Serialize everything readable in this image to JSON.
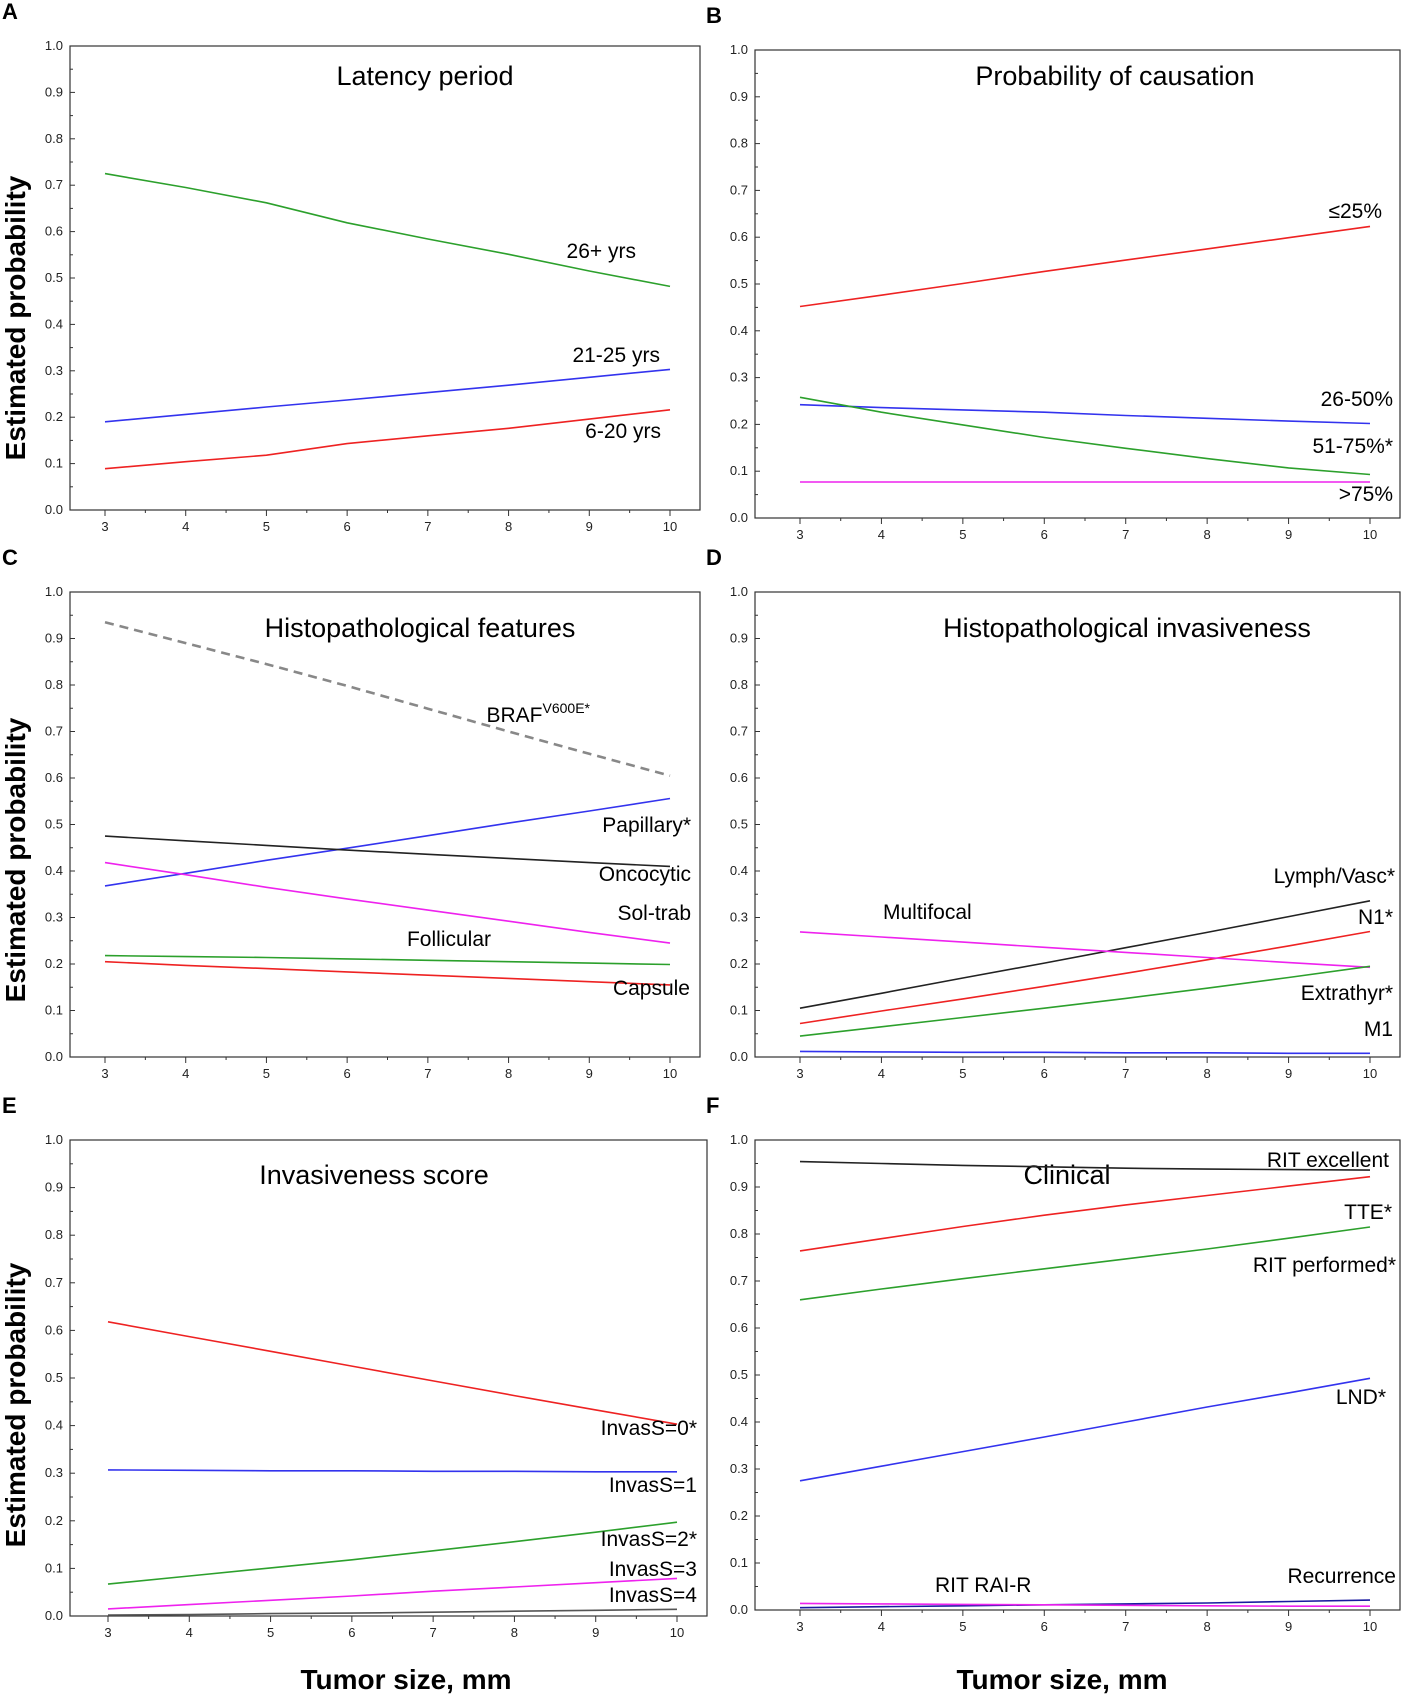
{
  "figure": {
    "ylabel": "Estimated probability",
    "xlabel": "Tumor size, mm"
  },
  "chart_data": [
    {
      "panel": "A",
      "type": "line",
      "title": "Latency period",
      "xlabel": "Tumor size, mm",
      "ylabel": "Estimated probability",
      "xlim": [
        3,
        10
      ],
      "ylim": [
        0,
        1
      ],
      "xticks": [
        "3",
        "4",
        "5",
        "6",
        "7",
        "8",
        "9",
        "10"
      ],
      "yticks": [
        "0.0",
        "0.1",
        "0.2",
        "0.3",
        "0.4",
        "0.5",
        "0.6",
        "0.7",
        "0.8",
        "0.9",
        "1.0"
      ],
      "series": [
        {
          "name": "26+ yrs",
          "color": "#2ca02c",
          "dashed": false,
          "x": [
            3,
            4,
            5,
            6,
            7,
            8,
            9,
            10
          ],
          "values": [
            0.725,
            0.695,
            0.662,
            0.619,
            0.584,
            0.551,
            0.515,
            0.482
          ]
        },
        {
          "name": "21-25 yrs",
          "color": "#3333ee",
          "dashed": false,
          "x": [
            3,
            4,
            5,
            6,
            7,
            8,
            9,
            10
          ],
          "values": [
            0.19,
            0.206,
            0.222,
            0.237,
            0.253,
            0.269,
            0.286,
            0.303
          ]
        },
        {
          "name": "6-20 yrs",
          "color": "#ee2222",
          "dashed": false,
          "x": [
            3,
            4,
            5,
            6,
            7,
            8,
            9,
            10
          ],
          "values": [
            0.089,
            0.104,
            0.118,
            0.143,
            0.16,
            0.176,
            0.196,
            0.216
          ]
        }
      ]
    },
    {
      "panel": "B",
      "type": "line",
      "title": "Probability of causation",
      "xlabel": "Tumor size, mm",
      "ylabel": "Estimated probability",
      "xlim": [
        3,
        10
      ],
      "ylim": [
        0,
        1
      ],
      "xticks": [
        "3",
        "4",
        "5",
        "6",
        "7",
        "8",
        "9",
        "10"
      ],
      "yticks": [
        "0.0",
        "0.1",
        "0.2",
        "0.3",
        "0.4",
        "0.5",
        "0.6",
        "0.7",
        "0.8",
        "0.9",
        "1.0"
      ],
      "series": [
        {
          "name": "≤25%",
          "color": "#ee2222",
          "dashed": false,
          "x": [
            3,
            4,
            5,
            6,
            7,
            8,
            9,
            10
          ],
          "values": [
            0.452,
            0.476,
            0.501,
            0.527,
            0.551,
            0.575,
            0.599,
            0.623
          ]
        },
        {
          "name": "26-50%",
          "color": "#3333ee",
          "dashed": false,
          "x": [
            3,
            4,
            5,
            6,
            7,
            8,
            9,
            10
          ],
          "values": [
            0.242,
            0.236,
            0.231,
            0.226,
            0.219,
            0.213,
            0.207,
            0.202
          ]
        },
        {
          "name": "51-75%*",
          "color": "#2ca02c",
          "dashed": false,
          "x": [
            3,
            4,
            5,
            6,
            7,
            8,
            9,
            10
          ],
          "values": [
            0.258,
            0.226,
            0.199,
            0.172,
            0.149,
            0.127,
            0.107,
            0.093
          ]
        },
        {
          "name": ">75%",
          "color": "#ee22ee",
          "dashed": false,
          "x": [
            3,
            4,
            5,
            6,
            7,
            8,
            9,
            10
          ],
          "values": [
            0.077,
            0.077,
            0.077,
            0.077,
            0.077,
            0.077,
            0.077,
            0.077
          ]
        }
      ]
    },
    {
      "panel": "C",
      "type": "line",
      "title": "Histopathological features",
      "xlabel": "Tumor size, mm",
      "ylabel": "Estimated probability",
      "xlim": [
        3,
        10
      ],
      "ylim": [
        0,
        1
      ],
      "xticks": [
        "3",
        "4",
        "5",
        "6",
        "7",
        "8",
        "9",
        "10"
      ],
      "yticks": [
        "0.0",
        "0.1",
        "0.2",
        "0.3",
        "0.4",
        "0.5",
        "0.6",
        "0.7",
        "0.8",
        "0.9",
        "1.0"
      ],
      "series": [
        {
          "name": "BRAF",
          "name_superscript": "V600E",
          "name_suffix": "*",
          "color": "#888888",
          "dashed": true,
          "x": [
            3,
            4,
            5,
            6,
            7,
            8,
            9,
            10
          ],
          "values": [
            0.935,
            0.89,
            0.845,
            0.798,
            0.749,
            0.7,
            0.652,
            0.605
          ]
        },
        {
          "name": "Papillary*",
          "color": "#3333ee",
          "dashed": false,
          "x": [
            3,
            4,
            5,
            6,
            7,
            8,
            9,
            10
          ],
          "values": [
            0.368,
            0.395,
            0.423,
            0.449,
            0.476,
            0.503,
            0.529,
            0.556
          ]
        },
        {
          "name": "Oncocytic",
          "color": "#222222",
          "dashed": false,
          "x": [
            3,
            4,
            5,
            6,
            7,
            8,
            9,
            10
          ],
          "values": [
            0.475,
            0.465,
            0.455,
            0.445,
            0.436,
            0.427,
            0.418,
            0.41
          ]
        },
        {
          "name": "Sol-trab",
          "color": "#ee22ee",
          "dashed": false,
          "x": [
            3,
            4,
            5,
            6,
            7,
            8,
            9,
            10
          ],
          "values": [
            0.418,
            0.392,
            0.365,
            0.34,
            0.316,
            0.292,
            0.268,
            0.245
          ]
        },
        {
          "name": "Follicular",
          "color": "#2ca02c",
          "dashed": false,
          "x": [
            3,
            4,
            5,
            6,
            7,
            8,
            9,
            10
          ],
          "values": [
            0.218,
            0.216,
            0.214,
            0.211,
            0.208,
            0.205,
            0.202,
            0.199
          ]
        },
        {
          "name": "Capsule",
          "color": "#ee2222",
          "dashed": false,
          "x": [
            3,
            4,
            5,
            6,
            7,
            8,
            9,
            10
          ],
          "values": [
            0.205,
            0.197,
            0.19,
            0.183,
            0.176,
            0.169,
            0.162,
            0.155
          ]
        }
      ]
    },
    {
      "panel": "D",
      "type": "line",
      "title": "Histopathological invasiveness",
      "xlabel": "Tumor size, mm",
      "ylabel": "Estimated probability",
      "xlim": [
        3,
        10
      ],
      "ylim": [
        0,
        1
      ],
      "xticks": [
        "3",
        "4",
        "5",
        "6",
        "7",
        "8",
        "9",
        "10"
      ],
      "yticks": [
        "0.0",
        "0.1",
        "0.2",
        "0.3",
        "0.4",
        "0.5",
        "0.6",
        "0.7",
        "0.8",
        "0.9",
        "1.0"
      ],
      "series": [
        {
          "name": "Lymph/Vasc*",
          "color": "#222222",
          "dashed": false,
          "x": [
            3,
            4,
            5,
            6,
            7,
            8,
            9,
            10
          ],
          "values": [
            0.105,
            0.137,
            0.17,
            0.202,
            0.235,
            0.268,
            0.302,
            0.336
          ]
        },
        {
          "name": "N1*",
          "color": "#ee2222",
          "dashed": false,
          "x": [
            3,
            4,
            5,
            6,
            7,
            8,
            9,
            10
          ],
          "values": [
            0.072,
            0.099,
            0.125,
            0.152,
            0.18,
            0.209,
            0.239,
            0.27
          ]
        },
        {
          "name": "Multifocal",
          "color": "#ee22ee",
          "dashed": false,
          "x": [
            3,
            4,
            5,
            6,
            7,
            8,
            9,
            10
          ],
          "values": [
            0.269,
            0.258,
            0.247,
            0.236,
            0.225,
            0.214,
            0.203,
            0.193
          ]
        },
        {
          "name": "Extrathyr*",
          "color": "#2ca02c",
          "dashed": false,
          "x": [
            3,
            4,
            5,
            6,
            7,
            8,
            9,
            10
          ],
          "values": [
            0.045,
            0.065,
            0.085,
            0.105,
            0.126,
            0.148,
            0.171,
            0.195
          ]
        },
        {
          "name": "M1",
          "color": "#3333ee",
          "dashed": false,
          "x": [
            3,
            4,
            5,
            6,
            7,
            8,
            9,
            10
          ],
          "values": [
            0.012,
            0.011,
            0.01,
            0.01,
            0.009,
            0.009,
            0.008,
            0.008
          ]
        }
      ]
    },
    {
      "panel": "E",
      "type": "line",
      "title": "Invasiveness score",
      "xlabel": "Tumor size, mm",
      "ylabel": "Estimated probability",
      "xlim": [
        3,
        10
      ],
      "ylim": [
        0,
        1
      ],
      "xticks": [
        "3",
        "4",
        "5",
        "6",
        "7",
        "8",
        "9",
        "10"
      ],
      "yticks": [
        "0.0",
        "0.1",
        "0.2",
        "0.3",
        "0.4",
        "0.5",
        "0.6",
        "0.7",
        "0.8",
        "0.9",
        "1.0"
      ],
      "series": [
        {
          "name": "InvasS=0*",
          "color": "#ee2222",
          "dashed": false,
          "x": [
            3,
            4,
            5,
            6,
            7,
            8,
            9,
            10
          ],
          "values": [
            0.618,
            0.587,
            0.556,
            0.525,
            0.494,
            0.463,
            0.433,
            0.403
          ]
        },
        {
          "name": "InvasS=1",
          "color": "#3333ee",
          "dashed": false,
          "x": [
            3,
            4,
            5,
            6,
            7,
            8,
            9,
            10
          ],
          "values": [
            0.307,
            0.306,
            0.305,
            0.305,
            0.304,
            0.304,
            0.303,
            0.303
          ]
        },
        {
          "name": "InvasS=2*",
          "color": "#2ca02c",
          "dashed": false,
          "x": [
            3,
            4,
            5,
            6,
            7,
            8,
            9,
            10
          ],
          "values": [
            0.067,
            0.084,
            0.101,
            0.118,
            0.137,
            0.156,
            0.176,
            0.197
          ]
        },
        {
          "name": "InvasS=3",
          "color": "#ee22ee",
          "dashed": false,
          "x": [
            3,
            4,
            5,
            6,
            7,
            8,
            9,
            10
          ],
          "values": [
            0.015,
            0.024,
            0.033,
            0.042,
            0.052,
            0.061,
            0.07,
            0.079
          ]
        },
        {
          "name": "InvasS=4",
          "color": "#555555",
          "dashed": false,
          "x": [
            3,
            4,
            5,
            6,
            7,
            8,
            9,
            10
          ],
          "values": [
            0.002,
            0.003,
            0.005,
            0.006,
            0.008,
            0.01,
            0.012,
            0.014
          ]
        }
      ]
    },
    {
      "panel": "F",
      "type": "line",
      "title": "Clinical",
      "xlabel": "Tumor size, mm",
      "ylabel": "Estimated probability",
      "xlim": [
        3,
        10
      ],
      "ylim": [
        0,
        1
      ],
      "xticks": [
        "3",
        "4",
        "5",
        "6",
        "7",
        "8",
        "9",
        "10"
      ],
      "yticks": [
        "0.0",
        "0.1",
        "0.2",
        "0.3",
        "0.4",
        "0.5",
        "0.6",
        "0.7",
        "0.8",
        "0.9",
        "1.0"
      ],
      "series": [
        {
          "name": "RIT excellent",
          "color": "#222222",
          "dashed": false,
          "x": [
            3,
            4,
            5,
            6,
            7,
            8,
            9,
            10
          ],
          "values": [
            0.954,
            0.95,
            0.946,
            0.943,
            0.94,
            0.938,
            0.937,
            0.936
          ]
        },
        {
          "name": "TTE*",
          "color": "#ee2222",
          "dashed": false,
          "x": [
            3,
            4,
            5,
            6,
            7,
            8,
            9,
            10
          ],
          "values": [
            0.764,
            0.79,
            0.816,
            0.84,
            0.862,
            0.882,
            0.902,
            0.922
          ]
        },
        {
          "name": "RIT performed*",
          "color": "#2ca02c",
          "dashed": false,
          "x": [
            3,
            4,
            5,
            6,
            7,
            8,
            9,
            10
          ],
          "values": [
            0.66,
            0.683,
            0.705,
            0.726,
            0.747,
            0.768,
            0.791,
            0.815
          ]
        },
        {
          "name": "LND*",
          "color": "#3333ee",
          "dashed": false,
          "x": [
            3,
            4,
            5,
            6,
            7,
            8,
            9,
            10
          ],
          "values": [
            0.275,
            0.306,
            0.337,
            0.368,
            0.4,
            0.432,
            0.462,
            0.493
          ]
        },
        {
          "name": "Recurrence",
          "color": "#1a1aa0",
          "dashed": false,
          "x": [
            3,
            4,
            5,
            6,
            7,
            8,
            9,
            10
          ],
          "values": [
            0.005,
            0.007,
            0.009,
            0.011,
            0.013,
            0.015,
            0.018,
            0.021
          ]
        },
        {
          "name": "RIT RAI-R",
          "color": "#ee22ee",
          "dashed": false,
          "x": [
            3,
            4,
            5,
            6,
            7,
            8,
            9,
            10
          ],
          "values": [
            0.014,
            0.013,
            0.012,
            0.011,
            0.01,
            0.009,
            0.008,
            0.008
          ]
        }
      ]
    }
  ]
}
